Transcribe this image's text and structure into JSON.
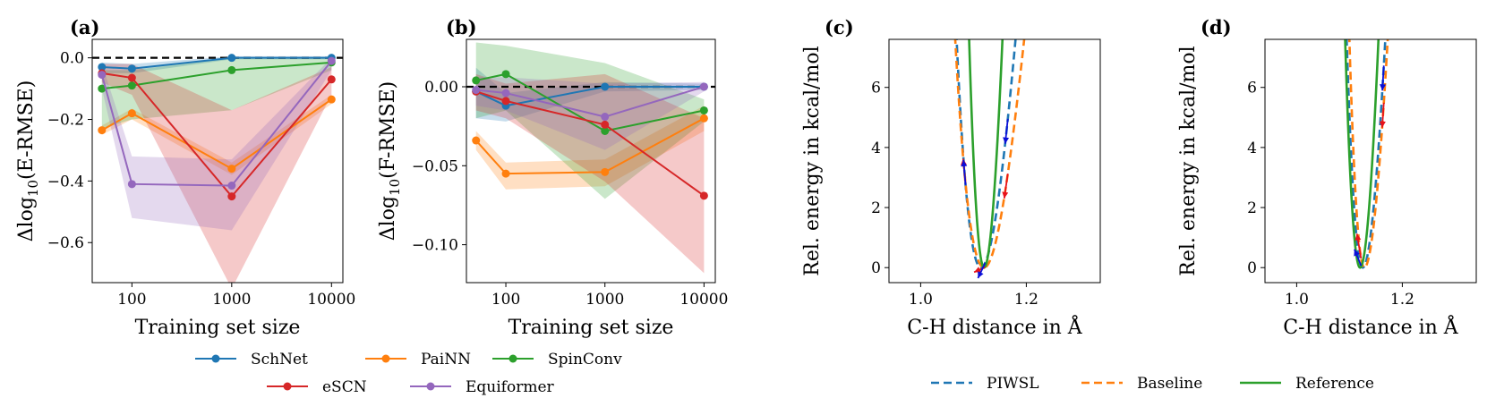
{
  "colors": {
    "SchNet": "#1f77b4",
    "PaiNN": "#ff7f0e",
    "SpinConv": "#2ca02c",
    "eSCN": "#d62728",
    "Equiformer": "#9467bd",
    "force_red": "#e8121a",
    "force_blue": "#0a0fd8"
  },
  "chart_data": [
    {
      "id": "a",
      "type": "line",
      "title": "(a)",
      "xlabel": "Training set size",
      "ylabel": "Δlog10(E-RMSE)",
      "ylabel_main": "Δlog",
      "ylabel_sub": "10",
      "ylabel_rest": "(E-RMSE)",
      "x_scale": "log",
      "xlim": [
        40,
        13000
      ],
      "ylim": [
        -0.73,
        0.06
      ],
      "x": [
        50,
        100,
        1000,
        10000
      ],
      "xticks": [
        100,
        1000,
        10000
      ],
      "xtick_labels": [
        "100",
        "1000",
        "10000"
      ],
      "yticks": [
        0.0,
        -0.2,
        -0.4,
        -0.6
      ],
      "ytick_labels": [
        "0.0",
        "−0.2",
        "−0.4",
        "−0.6"
      ],
      "reference_line": 0.0,
      "series": [
        {
          "name": "SchNet",
          "values": [
            -0.03,
            -0.035,
            0.0,
            0.0
          ],
          "band_low": [
            -0.05,
            -0.05,
            -0.005,
            -0.005
          ],
          "band_high": [
            -0.015,
            -0.02,
            0.005,
            0.005
          ]
        },
        {
          "name": "PaiNN",
          "values": [
            -0.235,
            -0.18,
            -0.36,
            -0.135
          ],
          "band_low": [
            -0.25,
            -0.2,
            -0.38,
            -0.15
          ],
          "band_high": [
            -0.22,
            -0.165,
            -0.34,
            -0.12
          ]
        },
        {
          "name": "SpinConv",
          "values": [
            -0.1,
            -0.09,
            -0.04,
            -0.015
          ],
          "band_low": [
            -0.23,
            -0.2,
            -0.17,
            -0.04
          ],
          "band_high": [
            -0.04,
            -0.04,
            0.0,
            0.0
          ]
        },
        {
          "name": "eSCN",
          "values": [
            -0.05,
            -0.065,
            -0.45,
            -0.07
          ],
          "band_low": [
            -0.08,
            -0.12,
            -0.75,
            -0.12
          ],
          "band_high": [
            -0.02,
            -0.02,
            -0.17,
            -0.03
          ]
        },
        {
          "name": "Equiformer",
          "values": [
            -0.055,
            -0.41,
            -0.415,
            -0.01
          ],
          "band_low": [
            -0.1,
            -0.52,
            -0.56,
            -0.04
          ],
          "band_high": [
            -0.02,
            -0.32,
            -0.33,
            0.0
          ]
        }
      ]
    },
    {
      "id": "b",
      "type": "line",
      "title": "(b)",
      "xlabel": "Training set size",
      "ylabel": "Δlog10(F-RMSE)",
      "ylabel_main": "Δlog",
      "ylabel_sub": "10",
      "ylabel_rest": "(F-RMSE)",
      "x_scale": "log",
      "xlim": [
        40,
        13000
      ],
      "ylim": [
        -0.124,
        0.03
      ],
      "x": [
        50,
        100,
        1000,
        10000
      ],
      "xticks": [
        100,
        1000,
        10000
      ],
      "xtick_labels": [
        "100",
        "1000",
        "10000"
      ],
      "yticks": [
        0.0,
        -0.05,
        -0.1
      ],
      "ytick_labels": [
        "0.00",
        "−0.05",
        "−0.10"
      ],
      "reference_line": 0.0,
      "series": [
        {
          "name": "SchNet",
          "values": [
            -0.003,
            -0.012,
            0.0,
            0.0
          ],
          "band_low": [
            -0.02,
            -0.022,
            -0.003,
            -0.002
          ],
          "band_high": [
            0.012,
            -0.004,
            0.003,
            0.002
          ]
        },
        {
          "name": "PaiNN",
          "values": [
            -0.034,
            -0.055,
            -0.054,
            -0.02
          ],
          "band_low": [
            -0.04,
            -0.065,
            -0.063,
            -0.028
          ],
          "band_high": [
            -0.028,
            -0.048,
            -0.046,
            -0.012
          ]
        },
        {
          "name": "SpinConv",
          "values": [
            0.004,
            0.008,
            -0.028,
            -0.015
          ],
          "band_low": [
            -0.02,
            -0.015,
            -0.071,
            -0.022
          ],
          "band_high": [
            0.028,
            0.026,
            0.015,
            -0.008
          ]
        },
        {
          "name": "eSCN",
          "values": [
            -0.003,
            -0.009,
            -0.024,
            -0.069
          ],
          "band_low": [
            -0.015,
            -0.02,
            -0.06,
            -0.118
          ],
          "band_high": [
            0.008,
            0.002,
            0.008,
            -0.02
          ]
        },
        {
          "name": "Equiformer",
          "values": [
            -0.002,
            -0.004,
            -0.019,
            0.0
          ],
          "band_low": [
            -0.012,
            -0.015,
            -0.04,
            -0.003
          ],
          "band_high": [
            0.006,
            0.006,
            0.002,
            0.003
          ]
        }
      ]
    },
    {
      "id": "c",
      "type": "line",
      "title": "(c)",
      "xlabel": "C-H distance in Å",
      "ylabel": "Rel. energy in kcal/mol",
      "xlim": [
        0.94,
        1.34
      ],
      "ylim": [
        -0.5,
        7.6
      ],
      "xticks": [
        1.0,
        1.2
      ],
      "xtick_labels": [
        "1.0",
        "1.2"
      ],
      "yticks": [
        0,
        2,
        4,
        6
      ],
      "ytick_labels": [
        "0",
        "2",
        "4",
        "6"
      ],
      "curves": [
        {
          "name": "PIWSL",
          "style": "dashed",
          "color": "#1f77b4",
          "x0": 1.114,
          "a": 0.92,
          "b": 0.55,
          "cl": 1.0,
          "cr": 0.9
        },
        {
          "name": "Baseline",
          "style": "dashed",
          "color": "#ff7f0e",
          "x0": 1.12,
          "a": 0.62,
          "b": 0.55,
          "cl": 1.0,
          "cr": 1.05
        },
        {
          "name": "Reference",
          "style": "solid",
          "color": "#2ca02c",
          "x0": 1.12,
          "a": 3.3,
          "b": 0.5,
          "cl": 1.0,
          "cr": 0.9
        }
      ],
      "red_arrow_x": [
        0.967,
        1.006,
        1.047,
        1.085,
        1.122,
        1.165,
        1.205,
        1.245,
        1.285
      ],
      "blue_arrow_x": [
        0.967,
        1.006,
        1.047,
        1.085,
        1.122,
        1.165,
        1.205,
        1.245,
        1.285
      ]
    },
    {
      "id": "d",
      "type": "line",
      "title": "(d)",
      "xlabel": "C-H distance in Å",
      "ylabel": "Rel. energy in kcal/mol",
      "xlim": [
        0.94,
        1.34
      ],
      "ylim": [
        -0.5,
        7.6
      ],
      "xticks": [
        1.0,
        1.2
      ],
      "xtick_labels": [
        "1.0",
        "1.2"
      ],
      "yticks": [
        0,
        2,
        4,
        6
      ],
      "ytick_labels": [
        "0",
        "2",
        "4",
        "6"
      ],
      "curves": [
        {
          "name": "PIWSL",
          "style": "dashed",
          "color": "#1f77b4",
          "x0": 1.125,
          "a": 2.3,
          "b": 0.55,
          "cl": 1.0,
          "cr": 0.75
        },
        {
          "name": "Baseline",
          "style": "dashed",
          "color": "#ff7f0e",
          "x0": 1.128,
          "a": 2.7,
          "b": 0.55,
          "cl": 1.0,
          "cr": 0.6
        },
        {
          "name": "Reference",
          "style": "solid",
          "color": "#2ca02c",
          "x0": 1.12,
          "a": 3.3,
          "b": 0.5,
          "cl": 1.0,
          "cr": 0.9
        }
      ],
      "red_arrow_x": [
        0.967,
        1.006,
        1.047,
        1.085,
        1.122,
        1.165,
        1.205,
        1.245,
        1.285
      ],
      "blue_arrow_x": [
        0.967,
        1.006,
        1.047,
        1.085,
        1.122,
        1.165,
        1.205,
        1.245,
        1.285
      ]
    }
  ],
  "legend_left": {
    "placement": "below panels (a) and (b)",
    "entries": [
      "SchNet",
      "PaiNN",
      "SpinConv",
      "eSCN",
      "Equiformer"
    ]
  },
  "legend_right": {
    "placement": "below panels (c) and (d)",
    "entries": [
      {
        "name": "PIWSL",
        "style": "dashed",
        "color": "#1f77b4"
      },
      {
        "name": "Baseline",
        "style": "dashed",
        "color": "#ff7f0e"
      },
      {
        "name": "Reference",
        "style": "solid",
        "color": "#2ca02c"
      }
    ]
  }
}
